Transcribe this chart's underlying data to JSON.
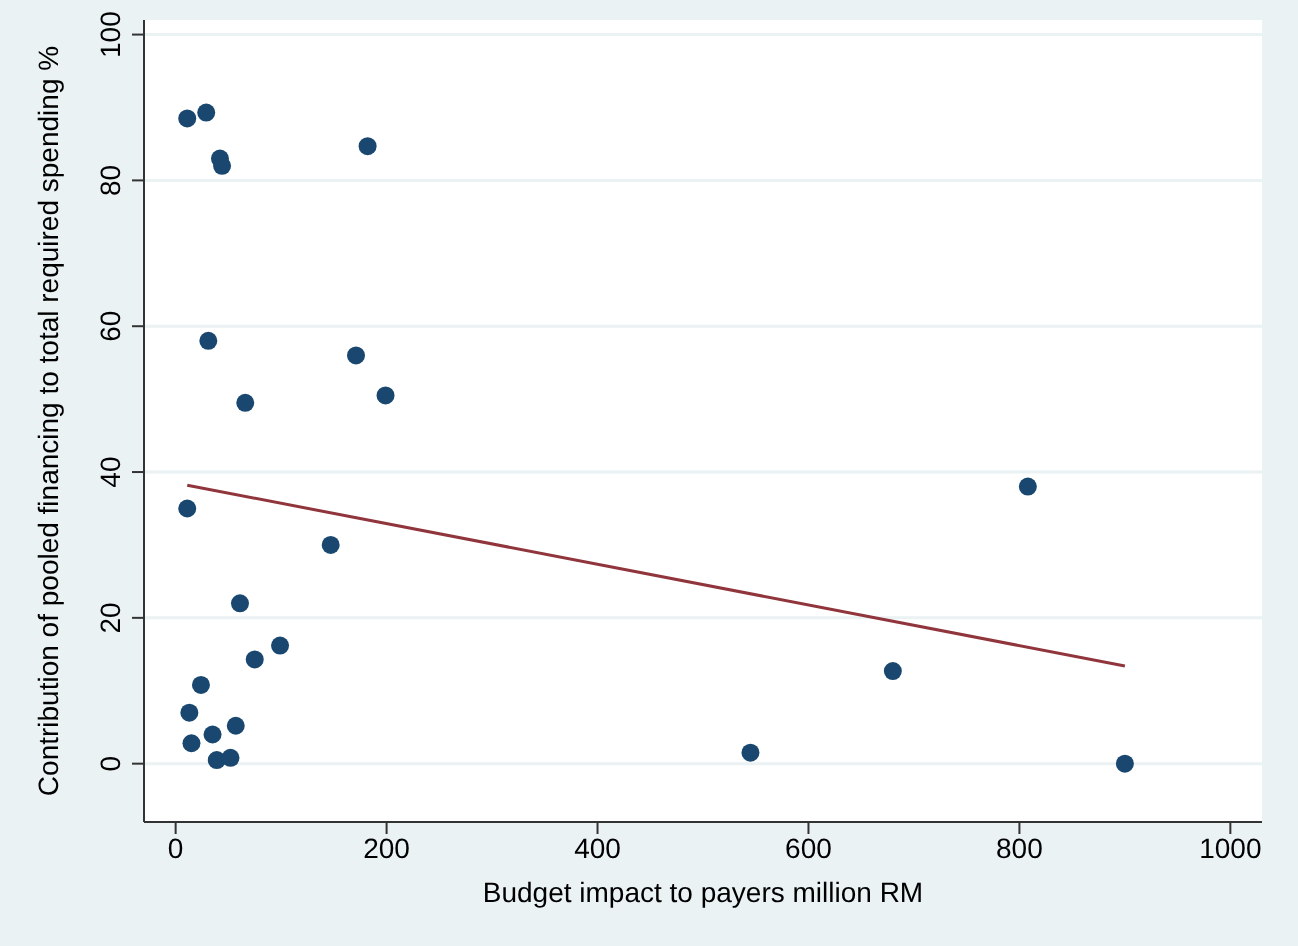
{
  "chart_data": {
    "type": "scatter",
    "xlabel": "Budget impact to payers million RM",
    "ylabel": "Contribution of pooled financing to total required spending %",
    "xlim": [
      -30,
      1030
    ],
    "ylim": [
      -8,
      102
    ],
    "xticks": [
      0,
      200,
      400,
      600,
      800,
      1000
    ],
    "yticks": [
      0,
      20,
      40,
      60,
      80,
      100
    ],
    "grid": "y",
    "legend": false,
    "marker": "circle",
    "series": [
      {
        "color": "#1a476f",
        "x": [
          11,
          29,
          42,
          44,
          182,
          31,
          171,
          199,
          66,
          11,
          147,
          61,
          75,
          99,
          24,
          13,
          15,
          35,
          57,
          39,
          52,
          545,
          680,
          808,
          900
        ],
        "values": [
          88.5,
          89.3,
          83,
          82,
          84.7,
          58,
          56,
          50.5,
          49.5,
          35,
          30,
          22,
          14.3,
          16.2,
          10.8,
          7,
          2.8,
          4,
          5.2,
          0.5,
          0.8,
          1.5,
          12.7,
          38,
          0
        ]
      },
      {
        "type": "line",
        "color": "#90353b",
        "marker": "none",
        "x": [
          11,
          900
        ],
        "values": [
          38.2,
          13.4
        ]
      }
    ]
  }
}
